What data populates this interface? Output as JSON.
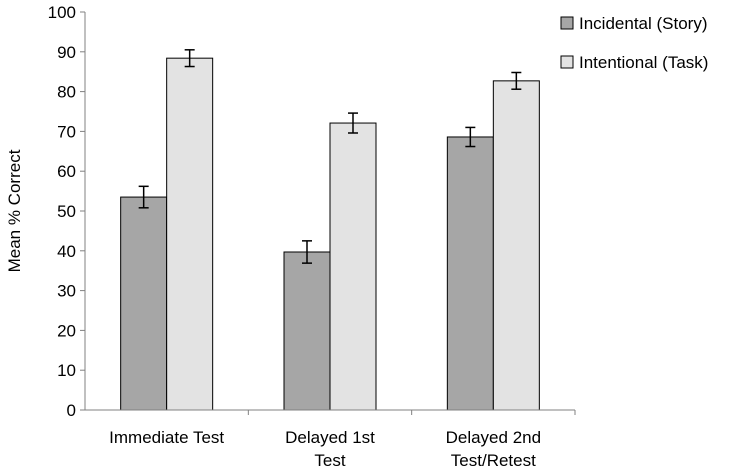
{
  "chart_data": {
    "type": "bar",
    "title": "",
    "xlabel": "",
    "ylabel": "Mean % Correct",
    "ylim": [
      0,
      100
    ],
    "yticks": [
      0,
      10,
      20,
      30,
      40,
      50,
      60,
      70,
      80,
      90,
      100
    ],
    "categories": [
      [
        "Immediate Test"
      ],
      [
        "Delayed 1st",
        "Test"
      ],
      [
        "Delayed 2nd",
        "Test/Retest"
      ]
    ],
    "series": [
      {
        "name": "Incidental (Story)",
        "color": "#a6a6a6",
        "values": [
          53.5,
          39.7,
          68.6
        ],
        "error": [
          2.7,
          2.8,
          2.4
        ]
      },
      {
        "name": "Intentional (Task)",
        "color": "#e3e3e3",
        "values": [
          88.4,
          72.1,
          82.7
        ],
        "error": [
          2.1,
          2.5,
          2.1
        ]
      }
    ],
    "grid": false,
    "legend": "top-right"
  }
}
